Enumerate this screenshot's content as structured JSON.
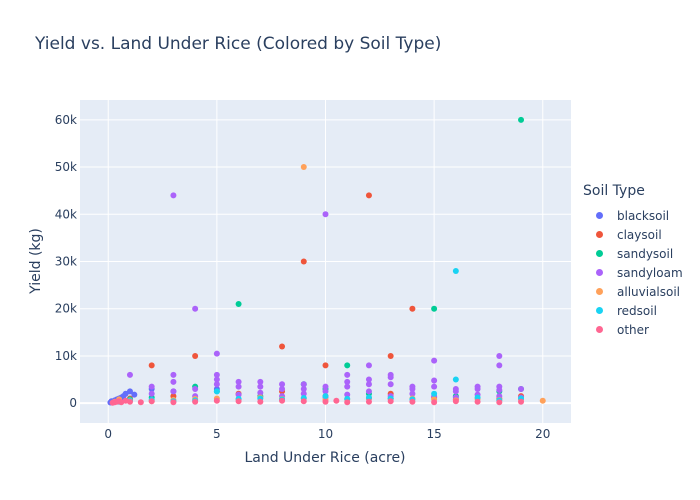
{
  "chart_data": {
    "type": "scatter",
    "title": "Yield vs. Land Under Rice (Colored by Soil Type)",
    "xlabel": "Land Under Rice (acre)",
    "ylabel": "Yield (kg)",
    "xlim": [
      -1.3,
      21.3
    ],
    "ylim": [
      -4200,
      64200
    ],
    "xticks": [
      0,
      5,
      10,
      15,
      20
    ],
    "xtick_labels": [
      "0",
      "5",
      "10",
      "15",
      "20"
    ],
    "yticks": [
      0,
      10000,
      20000,
      30000,
      40000,
      50000,
      60000
    ],
    "ytick_labels": [
      "0",
      "10k",
      "20k",
      "30k",
      "40k",
      "50k",
      "60k"
    ],
    "grid": true,
    "legend_title": "Soil Type",
    "legend_position": "right",
    "series": [
      {
        "name": "blacksoil",
        "color": "#636efa",
        "points": [
          [
            0.1,
            150
          ],
          [
            0.15,
            400
          ],
          [
            0.2,
            300
          ],
          [
            0.3,
            600
          ],
          [
            0.4,
            800
          ],
          [
            0.5,
            1000
          ],
          [
            0.6,
            1200
          ],
          [
            0.7,
            1500
          ],
          [
            0.8,
            2000
          ],
          [
            1,
            2500
          ],
          [
            1.2,
            1800
          ],
          [
            2,
            3000
          ],
          [
            3,
            2500
          ],
          [
            5,
            3000
          ]
        ]
      },
      {
        "name": "claysoil",
        "color": "#ef553b",
        "points": [
          [
            2,
            8000
          ],
          [
            4,
            10000
          ],
          [
            8,
            12000
          ],
          [
            9,
            30000
          ],
          [
            10,
            8000
          ],
          [
            12,
            44000
          ],
          [
            13,
            10000
          ],
          [
            14,
            20000
          ],
          [
            0.5,
            500
          ],
          [
            1,
            1000
          ],
          [
            3,
            1500
          ],
          [
            6,
            2000
          ],
          [
            8,
            2500
          ],
          [
            10,
            1500
          ],
          [
            12,
            1000
          ],
          [
            13,
            2000
          ],
          [
            15,
            1200
          ],
          [
            16,
            800
          ],
          [
            18,
            1000
          ],
          [
            19,
            1500
          ]
        ]
      },
      {
        "name": "sandysoil",
        "color": "#00cc96",
        "points": [
          [
            6,
            21000
          ],
          [
            9,
            4000
          ],
          [
            11,
            8000
          ],
          [
            15,
            20000
          ],
          [
            19,
            60000
          ],
          [
            4,
            3500
          ],
          [
            5,
            2500
          ],
          [
            10,
            3000
          ],
          [
            12,
            2000
          ],
          [
            16,
            1500
          ],
          [
            18,
            2500
          ],
          [
            19,
            3000
          ],
          [
            1,
            800
          ],
          [
            2,
            1200
          ],
          [
            7,
            1500
          ],
          [
            13,
            1000
          ]
        ]
      },
      {
        "name": "sandyloam",
        "color": "#ab63fa",
        "points": [
          [
            3,
            44000
          ],
          [
            4,
            20000
          ],
          [
            5,
            10500
          ],
          [
            10,
            40000
          ],
          [
            12,
            8000
          ],
          [
            15,
            9000
          ],
          [
            18,
            10000
          ],
          [
            18,
            8000
          ],
          [
            1,
            6000
          ],
          [
            2,
            3500
          ],
          [
            3,
            6000
          ],
          [
            3,
            4500
          ],
          [
            4,
            3000
          ],
          [
            5,
            6000
          ],
          [
            5,
            5000
          ],
          [
            5,
            4000
          ],
          [
            6,
            4500
          ],
          [
            6,
            3500
          ],
          [
            7,
            4500
          ],
          [
            7,
            3500
          ],
          [
            8,
            4000
          ],
          [
            8,
            3000
          ],
          [
            9,
            4000
          ],
          [
            9,
            3000
          ],
          [
            10,
            3500
          ],
          [
            10,
            2500
          ],
          [
            11,
            6000
          ],
          [
            11,
            4500
          ],
          [
            11,
            3500
          ],
          [
            12,
            5000
          ],
          [
            12,
            4000
          ],
          [
            13,
            6000
          ],
          [
            13,
            5500
          ],
          [
            13,
            4000
          ],
          [
            14,
            3500
          ],
          [
            14,
            3000
          ],
          [
            15,
            4800
          ],
          [
            15,
            3500
          ],
          [
            16,
            3000
          ],
          [
            16,
            2500
          ],
          [
            17,
            3500
          ],
          [
            17,
            3000
          ],
          [
            18,
            3500
          ],
          [
            18,
            2800
          ],
          [
            19,
            3000
          ],
          [
            2,
            2000
          ],
          [
            3,
            2500
          ],
          [
            4,
            1500
          ],
          [
            6,
            1800
          ],
          [
            7,
            2200
          ],
          [
            8,
            1500
          ],
          [
            9,
            2000
          ],
          [
            10,
            1200
          ],
          [
            11,
            1800
          ],
          [
            12,
            2500
          ],
          [
            13,
            1500
          ],
          [
            14,
            2000
          ],
          [
            15,
            1500
          ],
          [
            16,
            1200
          ],
          [
            17,
            1800
          ],
          [
            18,
            1500
          ],
          [
            19,
            1200
          ]
        ]
      },
      {
        "name": "alluvialsoil",
        "color": "#ffa15a",
        "points": [
          [
            9,
            50000
          ],
          [
            20,
            500
          ],
          [
            0.3,
            300
          ],
          [
            0.5,
            800
          ],
          [
            1,
            600
          ],
          [
            2,
            400
          ],
          [
            3,
            700
          ],
          [
            4,
            900
          ],
          [
            5,
            1000
          ],
          [
            6,
            800
          ],
          [
            7,
            1200
          ],
          [
            8,
            900
          ],
          [
            9,
            1000
          ],
          [
            10,
            700
          ],
          [
            11,
            800
          ],
          [
            12,
            1100
          ],
          [
            13,
            900
          ],
          [
            14,
            1000
          ],
          [
            15,
            800
          ],
          [
            16,
            600
          ],
          [
            17,
            900
          ],
          [
            18,
            700
          ],
          [
            19,
            800
          ]
        ]
      },
      {
        "name": "redsoil",
        "color": "#19d3f3",
        "points": [
          [
            16,
            28000
          ],
          [
            16,
            5000
          ],
          [
            0.5,
            300
          ],
          [
            1,
            500
          ],
          [
            2,
            700
          ],
          [
            3,
            400
          ],
          [
            4,
            600
          ],
          [
            5,
            2500
          ],
          [
            6,
            900
          ],
          [
            7,
            1000
          ],
          [
            8,
            800
          ],
          [
            9,
            1100
          ],
          [
            10,
            1500
          ],
          [
            11,
            900
          ],
          [
            12,
            1200
          ],
          [
            13,
            1000
          ],
          [
            14,
            800
          ],
          [
            15,
            2000
          ],
          [
            17,
            1200
          ],
          [
            18,
            600
          ],
          [
            19,
            1000
          ]
        ]
      },
      {
        "name": "other",
        "color": "#ff6692",
        "points": [
          [
            0.2,
            100
          ],
          [
            0.3,
            200
          ],
          [
            0.4,
            300
          ],
          [
            0.5,
            400
          ],
          [
            0.6,
            200
          ],
          [
            0.8,
            500
          ],
          [
            1,
            300
          ],
          [
            1.5,
            200
          ],
          [
            2,
            400
          ],
          [
            3,
            200
          ],
          [
            4,
            300
          ],
          [
            5,
            500
          ],
          [
            6,
            400
          ],
          [
            7,
            300
          ],
          [
            8,
            500
          ],
          [
            9,
            400
          ],
          [
            10,
            300
          ],
          [
            10.5,
            500
          ],
          [
            11,
            200
          ],
          [
            12,
            300
          ],
          [
            13,
            400
          ],
          [
            14,
            300
          ],
          [
            15,
            200
          ],
          [
            16,
            400
          ],
          [
            17,
            300
          ],
          [
            18,
            200
          ],
          [
            19,
            300
          ]
        ]
      }
    ]
  }
}
